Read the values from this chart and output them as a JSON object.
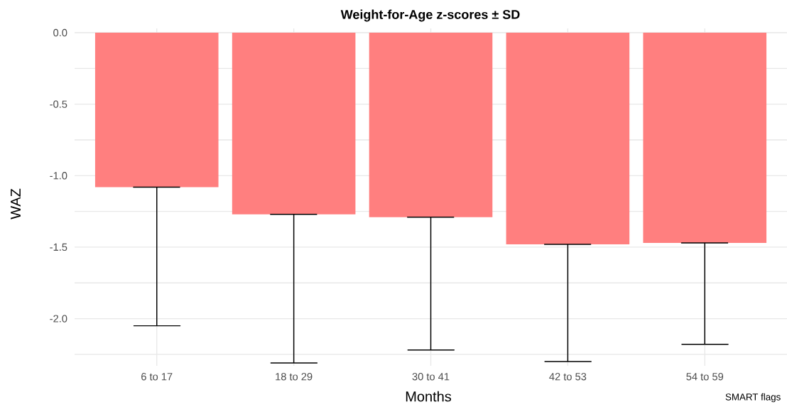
{
  "chart_data": {
    "type": "bar",
    "title": "Weight-for-Age z-scores ± SD",
    "xlabel": "Months",
    "ylabel": "WAZ",
    "categories": [
      "6  to 17",
      "18 to 29",
      "30 to 41",
      "42 to 53",
      "54 to 59"
    ],
    "values": [
      -1.08,
      -1.27,
      -1.29,
      -1.48,
      -1.47
    ],
    "errors": [
      [
        -2.05,
        -1.08
      ],
      [
        -2.31,
        -1.27
      ],
      [
        -2.22,
        -1.29
      ],
      [
        -2.3,
        -1.48
      ],
      [
        -2.18,
        -1.47
      ]
    ],
    "color": "#ff7f7f",
    "ylim": [
      -2.33,
      0.03
    ],
    "yticks": [
      {
        "value": 0,
        "label": "0.0"
      },
      {
        "value": -0.25,
        "label": null
      },
      {
        "value": -0.5,
        "label": "-0.5"
      },
      {
        "value": -0.75,
        "label": null
      },
      {
        "value": -1.0,
        "label": "-1.0"
      },
      {
        "value": -1.25,
        "label": null
      },
      {
        "value": -1.5,
        "label": "-1.5"
      },
      {
        "value": -1.75,
        "label": null
      },
      {
        "value": -2.0,
        "label": "-2.0"
      },
      {
        "value": -2.25,
        "label": null
      }
    ],
    "grid": true,
    "annotations": [
      "SMART flags"
    ]
  }
}
